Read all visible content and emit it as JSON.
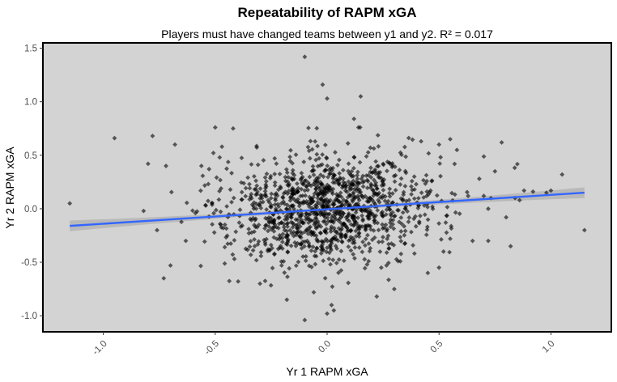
{
  "chart_data": {
    "type": "scatter",
    "title": "Repeatability of RAPM xGA",
    "subtitle": "Players must have changed teams between y1 and y2. R² = 0.017",
    "xlabel": "Yr 1 RAPM xGA",
    "ylabel": "Yr 2 RAPM xGA",
    "xlim": [
      -1.27,
      1.27
    ],
    "ylim": [
      -1.15,
      1.55
    ],
    "xticks": [
      -1.0,
      -0.5,
      0.0,
      0.5,
      1.0
    ],
    "xtick_labels": [
      "-1.0",
      "-0.5",
      "0.0",
      "0.5",
      "1.0"
    ],
    "yticks": [
      1.5,
      1.0,
      0.5,
      0.0,
      -0.5,
      -1.0
    ],
    "ytick_labels": [
      "1.5",
      "1.0",
      "0.5",
      "0.0",
      "-0.5",
      "-1.0"
    ],
    "grid": false,
    "background": "#d3d3d3",
    "point_color": "#000000",
    "point_opacity": 0.6,
    "regression": {
      "x_range": [
        -1.15,
        1.15
      ],
      "intercept": -0.005,
      "slope": 0.135,
      "color": "#3366ff",
      "band_color": "#b3b3b3",
      "ci_half_width_min": 0.015,
      "ci_half_width_max": 0.05
    },
    "highlight_points": [
      {
        "x": -1.15,
        "y": 0.05
      },
      {
        "x": -0.95,
        "y": 0.66
      },
      {
        "x": -0.78,
        "y": 0.68
      },
      {
        "x": -0.68,
        "y": 0.6
      },
      {
        "x": -0.72,
        "y": 0.4
      },
      {
        "x": -0.8,
        "y": 0.42
      },
      {
        "x": -0.82,
        "y": -0.02
      },
      {
        "x": -0.76,
        "y": -0.2
      },
      {
        "x": -0.73,
        "y": -0.65
      },
      {
        "x": -0.7,
        "y": -0.53
      },
      {
        "x": -0.5,
        "y": 0.76
      },
      {
        "x": -0.47,
        "y": 0.58
      },
      {
        "x": -0.48,
        "y": 0.48
      },
      {
        "x": -0.42,
        "y": 0.75
      },
      {
        "x": -0.18,
        "y": -0.85
      },
      {
        "x": -0.1,
        "y": 1.42
      },
      {
        "x": -0.02,
        "y": 1.16
      },
      {
        "x": 0.0,
        "y": 1.03
      },
      {
        "x": 0.15,
        "y": 1.05
      },
      {
        "x": 0.12,
        "y": 0.84
      },
      {
        "x": 0.14,
        "y": 0.76
      },
      {
        "x": -0.3,
        "y": -0.7
      },
      {
        "x": -0.1,
        "y": -1.04
      },
      {
        "x": 0.02,
        "y": -0.9
      },
      {
        "x": 0.03,
        "y": -0.95
      },
      {
        "x": 0.0,
        "y": -0.98
      },
      {
        "x": 0.3,
        "y": -0.75
      },
      {
        "x": 0.5,
        "y": 0.6
      },
      {
        "x": 0.42,
        "y": 0.63
      },
      {
        "x": 0.55,
        "y": 0.65
      },
      {
        "x": 0.58,
        "y": 0.55
      },
      {
        "x": 0.68,
        "y": 0.28
      },
      {
        "x": 0.75,
        "y": 0.35
      },
      {
        "x": 0.78,
        "y": 0.62
      },
      {
        "x": 0.72,
        "y": 0.0
      },
      {
        "x": 0.8,
        "y": -0.08
      },
      {
        "x": 0.82,
        "y": -0.35
      },
      {
        "x": 0.72,
        "y": -0.3
      },
      {
        "x": 0.65,
        "y": -0.3
      },
      {
        "x": 0.55,
        "y": -0.28
      },
      {
        "x": 0.5,
        "y": -0.55
      },
      {
        "x": 0.45,
        "y": -0.6
      },
      {
        "x": 0.52,
        "y": -0.4
      },
      {
        "x": 0.63,
        "y": 0.12
      },
      {
        "x": 0.7,
        "y": 0.12
      },
      {
        "x": 0.84,
        "y": 0.1
      },
      {
        "x": 0.88,
        "y": 0.17
      },
      {
        "x": 0.92,
        "y": 0.16
      },
      {
        "x": 1.0,
        "y": 0.17
      },
      {
        "x": 1.05,
        "y": 0.32
      },
      {
        "x": 1.15,
        "y": -0.2
      },
      {
        "x": 0.98,
        "y": 0.15
      },
      {
        "x": 0.86,
        "y": 0.08
      }
    ],
    "cloud_points": {
      "count": 1250,
      "x_mean": 0.0,
      "x_sd": 0.24,
      "y_sd": 0.26,
      "slope": 0.12,
      "seed": 42
    }
  }
}
